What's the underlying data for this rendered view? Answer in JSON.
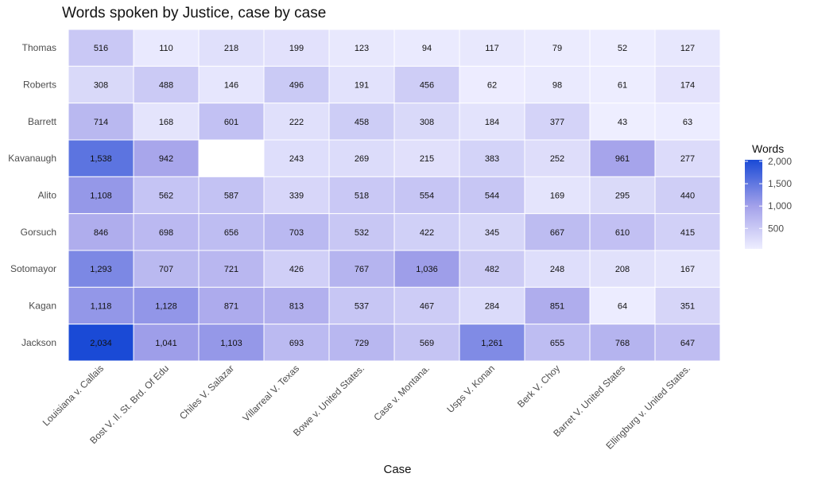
{
  "chart_data": {
    "type": "heatmap",
    "title": "Words spoken by Justice, case by case",
    "xlabel": "Case",
    "ylabel": "",
    "x": [
      "Louisiana v. Callais",
      "Bost V. Il. St. Brd. Of Edu",
      "Chiles V. Salazar",
      "Villarreal V. Texas",
      "Bowe v. United States.",
      "Case v. Montana.",
      "Usps V. Konan",
      "Berk V. Choy",
      "Barret V. United States",
      "Ellingburg v. United States."
    ],
    "y": [
      "Thomas",
      "Roberts",
      "Barrett",
      "Kavanaugh",
      "Alito",
      "Gorsuch",
      "Sotomayor",
      "Kagan",
      "Jackson"
    ],
    "values": [
      [
        516,
        110,
        218,
        199,
        123,
        94,
        117,
        79,
        52,
        127
      ],
      [
        308,
        488,
        146,
        496,
        191,
        456,
        62,
        98,
        61,
        174
      ],
      [
        714,
        168,
        601,
        222,
        458,
        308,
        184,
        377,
        43,
        63
      ],
      [
        1538,
        942,
        null,
        243,
        269,
        215,
        383,
        252,
        961,
        277
      ],
      [
        1108,
        562,
        587,
        339,
        518,
        554,
        544,
        169,
        295,
        440
      ],
      [
        846,
        698,
        656,
        703,
        532,
        422,
        345,
        667,
        610,
        415
      ],
      [
        1293,
        707,
        721,
        426,
        767,
        1036,
        482,
        248,
        208,
        167
      ],
      [
        1118,
        1128,
        871,
        813,
        537,
        467,
        284,
        851,
        64,
        351
      ],
      [
        2034,
        1041,
        1103,
        693,
        729,
        569,
        1261,
        655,
        768,
        647
      ]
    ],
    "legend": {
      "title": "Words",
      "ticks": [
        500,
        1000,
        1500,
        2000
      ],
      "tick_labels": [
        "500",
        "1,000",
        "1,500",
        "2,000"
      ],
      "range": [
        43,
        2034
      ],
      "placement": "right"
    },
    "colors": {
      "low": "#eeeeff",
      "mid": "#a3a1ea",
      "high": "#1a4ad6",
      "mid_value": 1000,
      "na": "#ffffff"
    }
  }
}
